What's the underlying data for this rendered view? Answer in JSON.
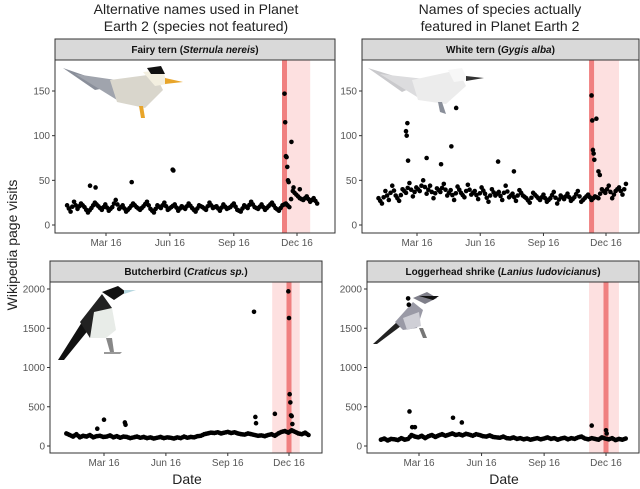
{
  "column_titles": {
    "left": [
      "Alternative names used in Planet",
      "Earth 2 (species not featured)"
    ],
    "right": [
      "Names of species actually",
      "featured in Planet Earth 2"
    ]
  },
  "ylabel": "Wikipedia page visits",
  "xlabel": "Date",
  "colors": {
    "point": "#000000",
    "line": "#f08080",
    "band": "#fde0e0",
    "strip": "#d9d9d9"
  },
  "chart_data": [
    {
      "type": "scatter",
      "common_name": "Fairy tern",
      "scientific_name": "Sternula nereis",
      "column": "not featured",
      "illustration": "fairy-tern",
      "ylim": [
        -8,
        185
      ],
      "yticks": [
        0,
        50,
        100,
        150
      ],
      "xticks": [
        {
          "label": "Mar 16",
          "date": "2016-03-01"
        },
        {
          "label": "Jun 16",
          "date": "2016-06-01"
        },
        {
          "label": "Sep 16",
          "date": "2016-09-01"
        },
        {
          "label": "Dec 16",
          "date": "2016-12-01"
        }
      ],
      "highlight_date": "2016-11-13",
      "window": [
        "2016-11-13",
        "2016-12-20"
      ],
      "series_start": "2016-01-05",
      "series_step_days": 5,
      "values": [
        22,
        15,
        26,
        18,
        24,
        20,
        14,
        19,
        25,
        21,
        17,
        23,
        16,
        20,
        28,
        18,
        22,
        15,
        19,
        24,
        20,
        17,
        21,
        26,
        18,
        14,
        22,
        19,
        25,
        17,
        20,
        23,
        16,
        21,
        18,
        24,
        19,
        15,
        22,
        20,
        17,
        25,
        19,
        21,
        16,
        23,
        18,
        20,
        24,
        17,
        15,
        22,
        19,
        26,
        20,
        18,
        23,
        17,
        21,
        25,
        19,
        16,
        22,
        24,
        20,
        38,
        34,
        30,
        28,
        32,
        26,
        30,
        24
      ],
      "outliers": [
        [
          "2016-02-07",
          44
        ],
        [
          "2016-02-15",
          42
        ],
        [
          "2016-04-07",
          48
        ],
        [
          "2016-06-05",
          62
        ],
        [
          "2016-06-06",
          61
        ],
        [
          "2016-11-13",
          147
        ],
        [
          "2016-11-14",
          115
        ],
        [
          "2016-11-15",
          77
        ],
        [
          "2016-11-16",
          76
        ],
        [
          "2016-11-17",
          65
        ],
        [
          "2016-11-18",
          50
        ],
        [
          "2016-11-19",
          48
        ],
        [
          "2016-11-23",
          93
        ],
        [
          "2016-11-26",
          42
        ],
        [
          "2016-12-05",
          40
        ]
      ]
    },
    {
      "type": "scatter",
      "common_name": "White tern",
      "scientific_name": "Gygis alba",
      "column": "featured",
      "illustration": "white-tern",
      "ylim": [
        -8,
        185
      ],
      "yticks": [
        0,
        50,
        100,
        150
      ],
      "xticks": [
        {
          "label": "Mar 16",
          "date": "2016-03-01"
        },
        {
          "label": "Jun 16",
          "date": "2016-06-01"
        },
        {
          "label": "Sep 16",
          "date": "2016-09-01"
        },
        {
          "label": "Dec 16",
          "date": "2016-12-01"
        }
      ],
      "highlight_date": "2016-11-10",
      "window": [
        "2016-11-10",
        "2016-12-20"
      ],
      "series_start": "2016-01-05",
      "series_step_days": 5,
      "values": [
        30,
        24,
        38,
        28,
        44,
        33,
        27,
        40,
        36,
        47,
        32,
        42,
        38,
        50,
        35,
        44,
        30,
        41,
        37,
        46,
        33,
        39,
        28,
        43,
        36,
        31,
        45,
        34,
        38,
        29,
        42,
        35,
        26,
        40,
        33,
        37,
        28,
        44,
        31,
        35,
        27,
        39,
        33,
        30,
        25,
        36,
        32,
        28,
        34,
        26,
        30,
        37,
        24,
        33,
        29,
        35,
        27,
        31,
        38,
        26,
        30,
        34,
        28,
        32,
        30,
        40,
        36,
        44,
        30,
        38,
        42,
        34,
        46
      ],
      "outliers": [
        [
          "2016-02-14",
          105
        ],
        [
          "2016-02-15",
          100
        ],
        [
          "2016-02-16",
          114
        ],
        [
          "2016-02-17",
          72
        ],
        [
          "2016-03-15",
          75
        ],
        [
          "2016-04-05",
          68
        ],
        [
          "2016-04-20",
          88
        ],
        [
          "2016-04-27",
          131
        ],
        [
          "2016-06-27",
          71
        ],
        [
          "2016-07-20",
          60
        ],
        [
          "2016-11-10",
          145
        ],
        [
          "2016-11-11",
          117
        ],
        [
          "2016-11-12",
          84
        ],
        [
          "2016-11-13",
          80
        ],
        [
          "2016-11-14",
          73
        ],
        [
          "2016-11-17",
          119
        ],
        [
          "2016-11-20",
          60
        ],
        [
          "2016-11-22",
          56
        ]
      ]
    },
    {
      "type": "scatter",
      "common_name": "Butcherbird",
      "scientific_name": "Craticus sp.",
      "column": "not featured",
      "illustration": "butcherbird",
      "ylim": [
        -100,
        2200
      ],
      "yticks": [
        0,
        500,
        1000,
        1500,
        2000
      ],
      "xticks": [
        {
          "label": "Mar 16",
          "date": "2016-03-01"
        },
        {
          "label": "Jun 16",
          "date": "2016-06-01"
        },
        {
          "label": "Sep 16",
          "date": "2016-09-01"
        },
        {
          "label": "Dec 16",
          "date": "2016-12-01"
        }
      ],
      "highlight_date": "2016-12-01",
      "window": [
        "2016-11-06",
        "2016-12-17"
      ],
      "series_start": "2016-01-05",
      "series_step_days": 5,
      "values": [
        160,
        140,
        120,
        150,
        110,
        130,
        120,
        140,
        110,
        125,
        130,
        115,
        120,
        135,
        110,
        125,
        105,
        120,
        115,
        100,
        110,
        120,
        105,
        115,
        100,
        110,
        95,
        105,
        115,
        100,
        110,
        105,
        95,
        110,
        100,
        120,
        105,
        115,
        110,
        125,
        130,
        150,
        160,
        170,
        165,
        175,
        160,
        170,
        180,
        165,
        175,
        160,
        150,
        145,
        160,
        150,
        140,
        130,
        135,
        125,
        140,
        150,
        130,
        160,
        180,
        190,
        170,
        200,
        180,
        160,
        150,
        170,
        140
      ],
      "outliers": [
        [
          "2016-02-20",
          220
        ],
        [
          "2016-03-01",
          335
        ],
        [
          "2016-04-01",
          300
        ],
        [
          "2016-04-02",
          270
        ],
        [
          "2016-10-10",
          1710
        ],
        [
          "2016-10-12",
          370
        ],
        [
          "2016-10-13",
          290
        ],
        [
          "2016-11-10",
          410
        ],
        [
          "2016-11-30",
          1970
        ],
        [
          "2016-12-01",
          1630
        ],
        [
          "2016-12-02",
          660
        ],
        [
          "2016-12-03",
          555
        ],
        [
          "2016-12-04",
          390
        ],
        [
          "2016-12-05",
          380
        ],
        [
          "2016-12-06",
          280
        ]
      ]
    },
    {
      "type": "scatter",
      "common_name": "Loggerhead shrike",
      "scientific_name": "Lanius ludovicianus",
      "column": "featured",
      "illustration": "loggerhead-shrike",
      "ylim": [
        -100,
        2200
      ],
      "yticks": [
        0,
        500,
        1000,
        1500,
        2000
      ],
      "xticks": [
        {
          "label": "Mar 16",
          "date": "2016-03-01"
        },
        {
          "label": "Jun 16",
          "date": "2016-06-01"
        },
        {
          "label": "Sep 16",
          "date": "2016-09-01"
        },
        {
          "label": "Dec 16",
          "date": "2016-12-01"
        }
      ],
      "highlight_date": "2016-12-01",
      "window": [
        "2016-11-06",
        "2016-12-20"
      ],
      "series_start": "2016-01-05",
      "series_step_days": 5,
      "values": [
        80,
        95,
        70,
        90,
        85,
        75,
        100,
        80,
        90,
        140,
        120,
        110,
        130,
        100,
        125,
        140,
        115,
        135,
        150,
        130,
        145,
        160,
        140,
        150,
        135,
        155,
        145,
        130,
        150,
        140,
        125,
        120,
        135,
        115,
        110,
        105,
        120,
        100,
        95,
        110,
        90,
        100,
        85,
        95,
        80,
        90,
        100,
        85,
        95,
        110,
        90,
        100,
        80,
        95,
        105,
        85,
        100,
        90,
        110,
        120,
        95,
        85,
        100,
        90,
        80,
        110,
        95,
        85,
        100,
        75,
        90,
        80,
        95
      ],
      "outliers": [
        [
          "2016-02-14",
          1880
        ],
        [
          "2016-02-15",
          1800
        ],
        [
          "2016-02-16",
          440
        ],
        [
          "2016-02-20",
          240
        ],
        [
          "2016-02-24",
          240
        ],
        [
          "2016-04-20",
          360
        ],
        [
          "2016-05-03",
          300
        ],
        [
          "2016-11-10",
          260
        ],
        [
          "2016-12-01",
          200
        ],
        [
          "2016-12-02",
          160
        ]
      ]
    }
  ]
}
